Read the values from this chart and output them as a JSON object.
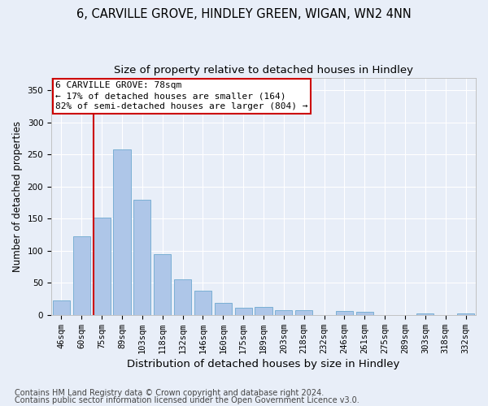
{
  "title1": "6, CARVILLE GROVE, HINDLEY GREEN, WIGAN, WN2 4NN",
  "title2": "Size of property relative to detached houses in Hindley",
  "xlabel": "Distribution of detached houses by size in Hindley",
  "ylabel": "Number of detached properties",
  "categories": [
    "46sqm",
    "60sqm",
    "75sqm",
    "89sqm",
    "103sqm",
    "118sqm",
    "132sqm",
    "146sqm",
    "160sqm",
    "175sqm",
    "189sqm",
    "203sqm",
    "218sqm",
    "232sqm",
    "246sqm",
    "261sqm",
    "275sqm",
    "289sqm",
    "303sqm",
    "318sqm",
    "332sqm"
  ],
  "values": [
    23,
    122,
    152,
    258,
    179,
    95,
    55,
    38,
    19,
    11,
    12,
    7,
    7,
    0,
    6,
    5,
    0,
    0,
    2,
    0,
    2
  ],
  "bar_color": "#aec6e8",
  "bar_edge_color": "#7aafd4",
  "highlight_index": 2,
  "highlight_color": "#cc0000",
  "annotation_text": "6 CARVILLE GROVE: 78sqm\n← 17% of detached houses are smaller (164)\n82% of semi-detached houses are larger (804) →",
  "ylim": [
    0,
    370
  ],
  "yticks": [
    0,
    50,
    100,
    150,
    200,
    250,
    300,
    350
  ],
  "footer1": "Contains HM Land Registry data © Crown copyright and database right 2024.",
  "footer2": "Contains public sector information licensed under the Open Government Licence v3.0.",
  "background_color": "#e8eef8",
  "plot_bg_color": "#e8eef8",
  "title1_fontsize": 10.5,
  "title2_fontsize": 9.5,
  "xlabel_fontsize": 9.5,
  "ylabel_fontsize": 8.5,
  "tick_fontsize": 7.5,
  "footer_fontsize": 7,
  "ann_fontsize": 8
}
